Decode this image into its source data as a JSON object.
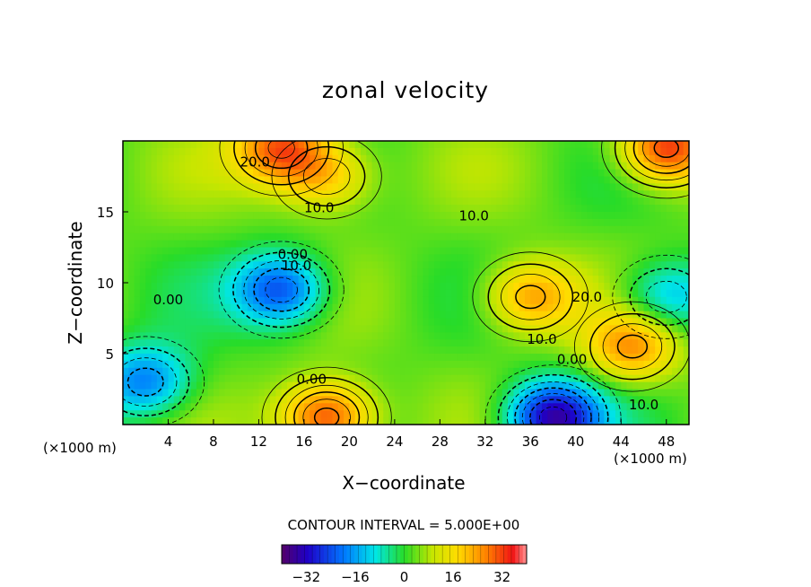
{
  "chart_data": {
    "type": "heatmap",
    "title": "zonal velocity",
    "xlabel": "X−coordinate",
    "ylabel": "Z−coordinate",
    "x_unit_left": "(×1000 m)",
    "x_unit_right": "(×1000 m)",
    "xlim": [
      0,
      50
    ],
    "ylim": [
      0,
      20
    ],
    "x_ticks": [
      4,
      8,
      12,
      16,
      20,
      24,
      28,
      32,
      36,
      40,
      44,
      48
    ],
    "y_ticks": [
      5,
      10,
      15
    ],
    "contour_interval_text": "CONTOUR INTERVAL = 5.000E+00",
    "contour_interval": 5,
    "colorbar": {
      "min": -40,
      "max": 40,
      "ticks": [
        -32,
        -16,
        0,
        16,
        32
      ]
    },
    "contour_labels": [
      {
        "text": "20.0",
        "x": 17.5,
        "y": 18.5
      },
      {
        "text": "10.0",
        "x": 26,
        "y": 15.3
      },
      {
        "text": "10.0",
        "x": 46.5,
        "y": 14.7
      },
      {
        "text": "0.00",
        "x": 22.5,
        "y": 12
      },
      {
        "text": "10.0",
        "x": 23,
        "y": 11.2
      },
      {
        "text": "0.00",
        "x": 6,
        "y": 8.8
      },
      {
        "text": "20.0",
        "x": 61.5,
        "y": 9
      },
      {
        "text": "10.0",
        "x": 55.5,
        "y": 6
      },
      {
        "text": "0.00",
        "x": 59.5,
        "y": 4.6
      },
      {
        "text": "0.00",
        "x": 25,
        "y": 3.2
      },
      {
        "text": "10.0",
        "x": 69,
        "y": 1.4
      }
    ],
    "field_features": [
      {
        "type": "max",
        "x": 14,
        "y": 19.5,
        "value": 30
      },
      {
        "type": "max",
        "x": 48,
        "y": 19.5,
        "value": 35
      },
      {
        "type": "max",
        "x": 18,
        "y": 17.5,
        "value": 22
      },
      {
        "type": "max",
        "x": 36,
        "y": 9,
        "value": 25
      },
      {
        "type": "max",
        "x": 45,
        "y": 5.5,
        "value": 25
      },
      {
        "type": "max",
        "x": 18,
        "y": 0.5,
        "value": 35
      },
      {
        "type": "min",
        "x": 14,
        "y": 9.5,
        "value": -25
      },
      {
        "type": "min",
        "x": 2,
        "y": 3,
        "value": -20
      },
      {
        "type": "min",
        "x": 38,
        "y": 0.5,
        "value": -35
      },
      {
        "type": "min",
        "x": 48,
        "y": 9,
        "value": -15
      }
    ]
  }
}
